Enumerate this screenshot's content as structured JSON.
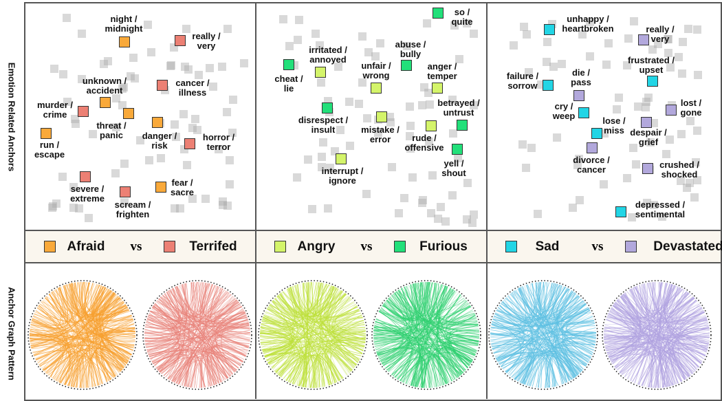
{
  "row_labels": {
    "top": "Emotion Related Anchors",
    "bottom": "Anchor Graph Pattern"
  },
  "vs_label": "vs",
  "colors": {
    "afraid": "#f9a93a",
    "terrified": "#ec8074",
    "angry": "#d4f46a",
    "furious": "#22e07a",
    "sad": "#22d5e5",
    "devastated": "#b2a8dc",
    "background_anchor": "#bbbbbb"
  },
  "panels": [
    {
      "pair": [
        "Afraid",
        "Terrifed"
      ],
      "pair_colors": [
        "#f9a93a",
        "#ec8074"
      ],
      "chord_colors": [
        "#f7a030",
        "#e8837a"
      ],
      "anchors": [
        {
          "label": "night /\nmidnight",
          "group": 0
        },
        {
          "label": "really /\nvery",
          "group": 1
        },
        {
          "label": "unknown /\naccident",
          "group": 0
        },
        {
          "label": "cancer /\nillness",
          "group": 1
        },
        {
          "label": "murder /\ncrime",
          "group": 1
        },
        {
          "label": "threat /\npanic",
          "group": 0
        },
        {
          "label": "danger /\nrisk",
          "group": 0
        },
        {
          "label": "run /\nescape",
          "group": 0
        },
        {
          "label": "horror /\nterror",
          "group": 1
        },
        {
          "label": "severe /\nextreme",
          "group": 1
        },
        {
          "label": "scream /\nfrighten",
          "group": 1
        },
        {
          "label": "fear /\nsacre",
          "group": 0
        }
      ]
    },
    {
      "pair": [
        "Angry",
        "Furious"
      ],
      "pair_colors": [
        "#d4f46a",
        "#22e07a"
      ],
      "chord_colors": [
        "#bde03a",
        "#2fd070"
      ],
      "anchors": [
        {
          "label": "so /\nquite",
          "group": 1
        },
        {
          "label": "cheat /\nlie",
          "group": 1
        },
        {
          "label": "irritated /\nannoyed",
          "group": 0
        },
        {
          "label": "abuse /\nbully",
          "group": 1
        },
        {
          "label": "unfair /\nwrong",
          "group": 0
        },
        {
          "label": "anger /\ntemper",
          "group": 0
        },
        {
          "label": "disrespect /\ninsult",
          "group": 1
        },
        {
          "label": "mistake /\nerror",
          "group": 0
        },
        {
          "label": "betrayed /\nuntrust",
          "group": 1
        },
        {
          "label": "rude /\noffensive",
          "group": 0
        },
        {
          "label": "yell /\nshout",
          "group": 1
        },
        {
          "label": "interrupt /\nignore",
          "group": 0
        }
      ]
    },
    {
      "pair": [
        "Sad",
        "Devastated"
      ],
      "pair_colors": [
        "#22d5e5",
        "#b2a8dc"
      ],
      "chord_colors": [
        "#5ec0e2",
        "#b0a2e0"
      ],
      "anchors": [
        {
          "label": "unhappy /\nheartbroken",
          "group": 0
        },
        {
          "label": "really /\nvery",
          "group": 1
        },
        {
          "label": "failure /\nsorrow",
          "group": 0
        },
        {
          "label": "die /\npass",
          "group": 1
        },
        {
          "label": "frustrated /\nupset",
          "group": 0
        },
        {
          "label": "cry /\nweep",
          "group": 0
        },
        {
          "label": "lost /\ngone",
          "group": 1
        },
        {
          "label": "lose /\nmiss",
          "group": 0
        },
        {
          "label": "despair /\ngrief",
          "group": 1
        },
        {
          "label": "divorce /\ncancer",
          "group": 1
        },
        {
          "label": "crushed /\nshocked",
          "group": 1
        },
        {
          "label": "depressed /\nsentimental",
          "group": 0
        }
      ]
    }
  ]
}
